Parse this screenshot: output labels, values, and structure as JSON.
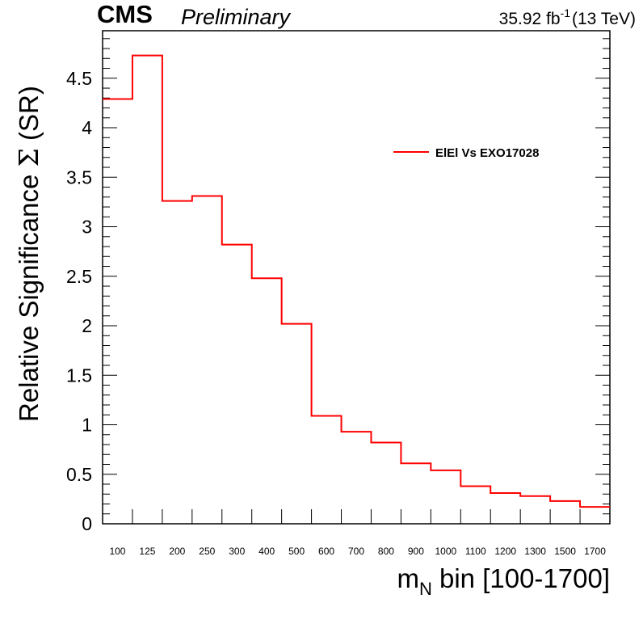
{
  "header": {
    "cms": "CMS",
    "preliminary": "Preliminary",
    "lumi_value": "35.92 fb",
    "lumi_exp": "-1",
    "lumi_energy": "(13 TeV)"
  },
  "chart_data": {
    "type": "line",
    "title": "",
    "xlabel_main": "m",
    "xlabel_sub": "N",
    "xlabel_rest": " bin [100-1700]",
    "ylabel_main": "Relative Significance ",
    "ylabel_sigma": "Σ",
    "ylabel_rest": " (SR)",
    "categories": [
      "100",
      "125",
      "200",
      "250",
      "300",
      "400",
      "500",
      "600",
      "700",
      "800",
      "900",
      "1000",
      "1100",
      "1200",
      "1300",
      "1500",
      "1700"
    ],
    "series": [
      {
        "name": "ElEl Vs EXO17028",
        "color": "#ff0000",
        "values": [
          4.29,
          4.73,
          3.26,
          3.31,
          2.82,
          2.48,
          2.02,
          1.09,
          0.93,
          0.82,
          0.61,
          0.54,
          0.38,
          0.31,
          0.28,
          0.23,
          0.17
        ]
      }
    ],
    "ylim": [
      0,
      4.98
    ],
    "yticks": [
      0,
      0.5,
      1,
      1.5,
      2,
      2.5,
      3,
      3.5,
      4,
      4.5
    ],
    "ytick_labels": [
      "0",
      "0.5",
      "1",
      "1.5",
      "2",
      "2.5",
      "3",
      "3.5",
      "4",
      "4.5"
    ],
    "step": true,
    "grid": false,
    "legend_position": "top-right"
  }
}
